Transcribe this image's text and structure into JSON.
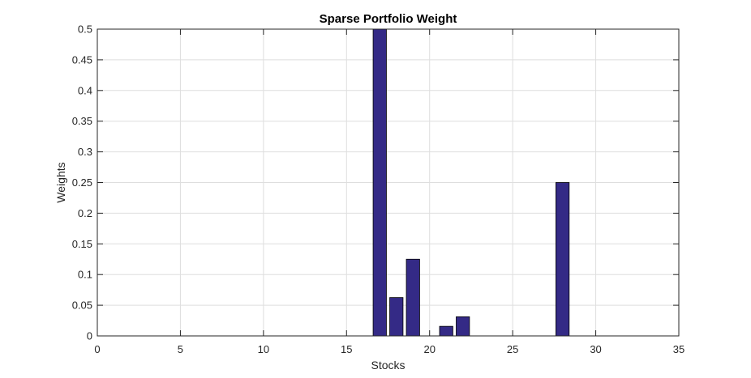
{
  "chart_data": {
    "type": "bar",
    "title": "Sparse Portfolio Weight",
    "xlabel": "Stocks",
    "ylabel": "Weights",
    "xlim": [
      0,
      35
    ],
    "ylim": [
      0,
      0.5
    ],
    "x_ticks": [
      0,
      5,
      10,
      15,
      20,
      25,
      30,
      35
    ],
    "y_ticks": [
      0,
      0.05,
      0.1,
      0.15,
      0.2,
      0.25,
      0.3,
      0.35,
      0.4,
      0.45,
      0.5
    ],
    "x_tick_labels": [
      "0",
      "5",
      "10",
      "15",
      "20",
      "25",
      "30",
      "35"
    ],
    "y_tick_labels": [
      "0",
      "0.05",
      "0.1",
      "0.15",
      "0.2",
      "0.25",
      "0.3",
      "0.35",
      "0.4",
      "0.45",
      "0.5"
    ],
    "grid": true,
    "bar_width": 0.8,
    "bar_color": "#342a86",
    "series": [
      {
        "x": [
          17,
          18,
          19,
          21,
          22,
          28
        ],
        "values": [
          0.5,
          0.0625,
          0.125,
          0.015625,
          0.03125,
          0.25
        ]
      }
    ]
  }
}
